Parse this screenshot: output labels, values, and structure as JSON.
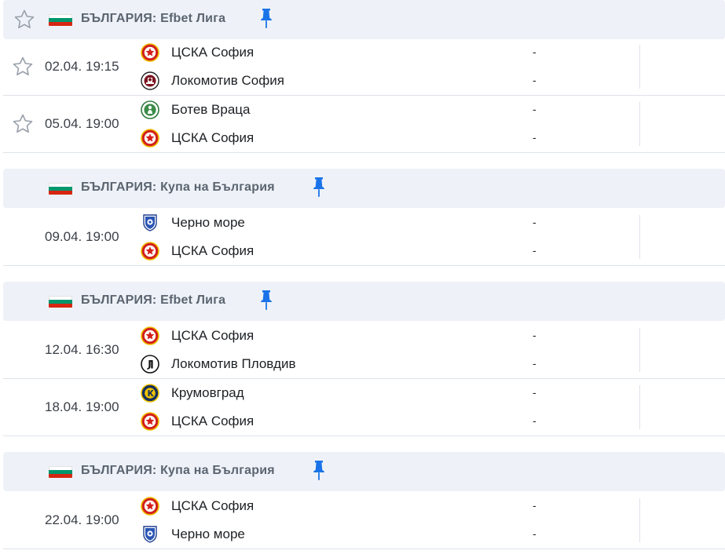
{
  "sections": [
    {
      "country": "БЪЛГАРИЯ",
      "league": "Efbet Лига",
      "title": "БЪЛГАРИЯ: Efbet Лига",
      "matches": [
        {
          "time": "02.04. 19:15",
          "home": "ЦСКА София",
          "away": "Локомотив София",
          "home_score": "-",
          "away_score": "-"
        },
        {
          "time": "05.04. 19:00",
          "home": "Ботев Враца",
          "away": "ЦСКА София",
          "home_score": "-",
          "away_score": "-"
        }
      ]
    },
    {
      "country": "БЪЛГАРИЯ",
      "league": "Купа на България",
      "title": "БЪЛГАРИЯ: Купа на България",
      "matches": [
        {
          "time": "09.04. 19:00",
          "home": "Черно море",
          "away": "ЦСКА София",
          "home_score": "-",
          "away_score": "-"
        }
      ]
    },
    {
      "country": "БЪЛГАРИЯ",
      "league": "Efbet Лига",
      "title": "БЪЛГАРИЯ: Efbet Лига",
      "matches": [
        {
          "time": "12.04. 16:30",
          "home": "ЦСКА София",
          "away": "Локомотив Пловдив",
          "home_score": "-",
          "away_score": "-"
        },
        {
          "time": "18.04. 19:00",
          "home": "Крумовград",
          "away": "ЦСКА София",
          "home_score": "-",
          "away_score": "-"
        }
      ]
    },
    {
      "country": "БЪЛГАРИЯ",
      "league": "Купа на България",
      "title": "БЪЛГАРИЯ: Купа на България",
      "matches": [
        {
          "time": "22.04. 19:00",
          "home": "ЦСКА София",
          "away": "Черно море",
          "home_score": "-",
          "away_score": "-"
        }
      ]
    }
  ],
  "colors": {
    "header_bg": "#eef2f8",
    "pin": "#1a73e8",
    "flag_white": "#ffffff",
    "flag_green": "#00966e",
    "flag_red": "#d62612"
  },
  "icons": {
    "favorite": "star-outline-icon",
    "pin": "pin-icon",
    "flag": "bulgaria-flag-icon"
  }
}
